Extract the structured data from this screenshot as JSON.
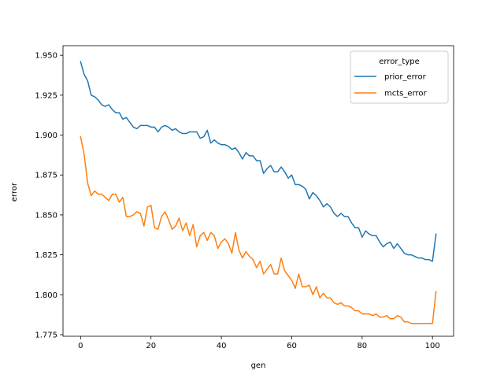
{
  "chart_data": {
    "type": "line",
    "title": "",
    "xlabel": "gen",
    "ylabel": "error",
    "xlim": [
      -5,
      106
    ],
    "ylim": [
      1.774,
      1.956
    ],
    "xticks": [
      0,
      20,
      40,
      60,
      80,
      100
    ],
    "yticks": [
      1.775,
      1.8,
      1.825,
      1.85,
      1.875,
      1.9,
      1.925,
      1.95
    ],
    "ytick_labels": [
      "1.775",
      "1.800",
      "1.825",
      "1.850",
      "1.875",
      "1.900",
      "1.925",
      "1.950"
    ],
    "xtick_labels": [
      "0",
      "20",
      "40",
      "60",
      "80",
      "100"
    ],
    "grid": false,
    "legend": {
      "title": "error_type",
      "placement": "top-right"
    },
    "series": [
      {
        "name": "prior_error",
        "color": "#1f77b4",
        "x": [
          0,
          1,
          2,
          3,
          4,
          5,
          6,
          7,
          8,
          9,
          10,
          11,
          12,
          13,
          14,
          15,
          16,
          17,
          18,
          19,
          20,
          21,
          22,
          23,
          24,
          25,
          26,
          27,
          28,
          29,
          30,
          31,
          32,
          33,
          34,
          35,
          36,
          37,
          38,
          39,
          40,
          41,
          42,
          43,
          44,
          45,
          46,
          47,
          48,
          49,
          50,
          51,
          52,
          53,
          54,
          55,
          56,
          57,
          58,
          59,
          60,
          61,
          62,
          63,
          64,
          65,
          66,
          67,
          68,
          69,
          70,
          71,
          72,
          73,
          74,
          75,
          76,
          77,
          78,
          79,
          80,
          81,
          82,
          83,
          84,
          85,
          86,
          87,
          88,
          89,
          90,
          91,
          92,
          93,
          94,
          95,
          96,
          97,
          98,
          99,
          100,
          101
        ],
        "values": [
          1.946,
          1.938,
          1.934,
          1.925,
          1.924,
          1.922,
          1.919,
          1.918,
          1.919,
          1.916,
          1.914,
          1.914,
          1.91,
          1.911,
          1.908,
          1.905,
          1.904,
          1.906,
          1.906,
          1.906,
          1.905,
          1.905,
          1.902,
          1.905,
          1.906,
          1.905,
          1.903,
          1.904,
          1.902,
          1.901,
          1.901,
          1.902,
          1.902,
          1.902,
          1.898,
          1.899,
          1.903,
          1.895,
          1.897,
          1.895,
          1.894,
          1.894,
          1.893,
          1.891,
          1.892,
          1.889,
          1.885,
          1.889,
          1.887,
          1.887,
          1.884,
          1.884,
          1.876,
          1.879,
          1.881,
          1.877,
          1.877,
          1.88,
          1.877,
          1.873,
          1.875,
          1.869,
          1.869,
          1.868,
          1.866,
          1.86,
          1.864,
          1.862,
          1.859,
          1.855,
          1.857,
          1.855,
          1.851,
          1.849,
          1.851,
          1.849,
          1.849,
          1.845,
          1.842,
          1.842,
          1.836,
          1.84,
          1.838,
          1.837,
          1.837,
          1.833,
          1.83,
          1.832,
          1.833,
          1.829,
          1.832,
          1.829,
          1.826,
          1.825,
          1.825,
          1.824,
          1.823,
          1.823,
          1.822,
          1.822,
          1.821,
          1.838
        ]
      },
      {
        "name": "mcts_error",
        "color": "#ff7f0e",
        "x": [
          0,
          1,
          2,
          3,
          4,
          5,
          6,
          7,
          8,
          9,
          10,
          11,
          12,
          13,
          14,
          15,
          16,
          17,
          18,
          19,
          20,
          21,
          22,
          23,
          24,
          25,
          26,
          27,
          28,
          29,
          30,
          31,
          32,
          33,
          34,
          35,
          36,
          37,
          38,
          39,
          40,
          41,
          42,
          43,
          44,
          45,
          46,
          47,
          48,
          49,
          50,
          51,
          52,
          53,
          54,
          55,
          56,
          57,
          58,
          59,
          60,
          61,
          62,
          63,
          64,
          65,
          66,
          67,
          68,
          69,
          70,
          71,
          72,
          73,
          74,
          75,
          76,
          77,
          78,
          79,
          80,
          81,
          82,
          83,
          84,
          85,
          86,
          87,
          88,
          89,
          90,
          91,
          92,
          93,
          94,
          95,
          96,
          97,
          98,
          99,
          100,
          101
        ],
        "values": [
          1.899,
          1.888,
          1.87,
          1.862,
          1.865,
          1.863,
          1.863,
          1.861,
          1.859,
          1.863,
          1.863,
          1.858,
          1.861,
          1.849,
          1.849,
          1.85,
          1.852,
          1.851,
          1.843,
          1.855,
          1.856,
          1.842,
          1.841,
          1.849,
          1.852,
          1.847,
          1.841,
          1.843,
          1.848,
          1.84,
          1.845,
          1.837,
          1.844,
          1.83,
          1.837,
          1.839,
          1.834,
          1.839,
          1.837,
          1.829,
          1.833,
          1.835,
          1.832,
          1.826,
          1.839,
          1.828,
          1.823,
          1.827,
          1.824,
          1.822,
          1.817,
          1.821,
          1.813,
          1.816,
          1.819,
          1.813,
          1.813,
          1.823,
          1.815,
          1.812,
          1.809,
          1.804,
          1.813,
          1.805,
          1.805,
          1.806,
          1.8,
          1.805,
          1.798,
          1.801,
          1.798,
          1.798,
          1.795,
          1.794,
          1.795,
          1.793,
          1.793,
          1.792,
          1.79,
          1.79,
          1.788,
          1.788,
          1.788,
          1.787,
          1.788,
          1.786,
          1.786,
          1.787,
          1.785,
          1.785,
          1.787,
          1.786,
          1.783,
          1.783,
          1.782,
          1.782,
          1.782,
          1.782,
          1.782,
          1.782,
          1.782,
          1.802
        ]
      }
    ]
  }
}
